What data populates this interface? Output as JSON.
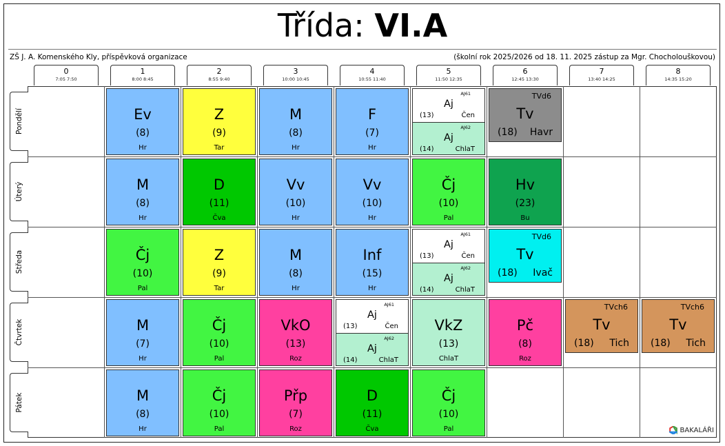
{
  "header": {
    "title_prefix": "Třída:",
    "title_class": "VI.A",
    "school": "ZŠ J. A. Komenského Kly, příspěvková organizace",
    "info": "(školní rok 2025/2026 od 18. 11. 2025 zástup za Mgr. Chocholouškovou)"
  },
  "periods": [
    {
      "num": "0",
      "time": "7:05  7:50"
    },
    {
      "num": "1",
      "time": "8:00  8:45"
    },
    {
      "num": "2",
      "time": "8:55  9:40"
    },
    {
      "num": "3",
      "time": "10:00 10:45"
    },
    {
      "num": "4",
      "time": "10:55 11:40"
    },
    {
      "num": "5",
      "time": "11:50 12:35"
    },
    {
      "num": "6",
      "time": "12:45 13:30"
    },
    {
      "num": "7",
      "time": "13:40 14:25"
    },
    {
      "num": "8",
      "time": "14:35 15:20"
    }
  ],
  "days": [
    {
      "name": "Pondělí",
      "lessons": [
        {
          "p": 1,
          "subject": "Ev",
          "room": "(8)",
          "teacher": "Hr",
          "color": "#80bfff"
        },
        {
          "p": 2,
          "subject": "Z",
          "room": "(9)",
          "teacher": "Tar",
          "color": "#ffff3d"
        },
        {
          "p": 3,
          "subject": "M",
          "room": "(8)",
          "teacher": "Hr",
          "color": "#80bfff"
        },
        {
          "p": 4,
          "subject": "F",
          "room": "(7)",
          "teacher": "Hr",
          "color": "#80bfff"
        }
      ],
      "split": [
        {
          "p": 5,
          "halves": [
            {
              "group": "AJ61",
              "subject": "Aj",
              "room": "(13)",
              "teacher": "Čen",
              "color": "#ffffff"
            },
            {
              "group": "AJ62",
              "subject": "Aj",
              "room": "(14)",
              "teacher": "ChlaT",
              "color": "#b3f0d0"
            }
          ]
        }
      ],
      "short": [
        {
          "p": 6,
          "group": "TVd6",
          "subject": "Tv",
          "room": "(18)",
          "teacher": "Havr",
          "color": "#8c8c8c"
        }
      ]
    },
    {
      "name": "Úterý",
      "lessons": [
        {
          "p": 1,
          "subject": "M",
          "room": "(8)",
          "teacher": "Hr",
          "color": "#80bfff"
        },
        {
          "p": 2,
          "subject": "D",
          "room": "(11)",
          "teacher": "Čva",
          "color": "#00c800"
        },
        {
          "p": 3,
          "subject": "Vv",
          "room": "(10)",
          "teacher": "Hr",
          "color": "#80bfff"
        },
        {
          "p": 4,
          "subject": "Vv",
          "room": "(10)",
          "teacher": "Hr",
          "color": "#80bfff"
        },
        {
          "p": 5,
          "subject": "Čj",
          "room": "(10)",
          "teacher": "Pal",
          "color": "#42f542"
        },
        {
          "p": 6,
          "subject": "Hv",
          "room": "(23)",
          "teacher": "Bu",
          "color": "#0fa34f"
        }
      ],
      "split": [],
      "short": []
    },
    {
      "name": "Středa",
      "lessons": [
        {
          "p": 1,
          "subject": "Čj",
          "room": "(10)",
          "teacher": "Pal",
          "color": "#42f542"
        },
        {
          "p": 2,
          "subject": "Z",
          "room": "(9)",
          "teacher": "Tar",
          "color": "#ffff3d"
        },
        {
          "p": 3,
          "subject": "M",
          "room": "(8)",
          "teacher": "Hr",
          "color": "#80bfff"
        },
        {
          "p": 4,
          "subject": "Inf",
          "room": "(15)",
          "teacher": "Hr",
          "color": "#80bfff"
        }
      ],
      "split": [
        {
          "p": 5,
          "halves": [
            {
              "group": "AJ61",
              "subject": "Aj",
              "room": "(13)",
              "teacher": "Čen",
              "color": "#ffffff"
            },
            {
              "group": "AJ62",
              "subject": "Aj",
              "room": "(14)",
              "teacher": "ChlaT",
              "color": "#b3f0d0"
            }
          ]
        }
      ],
      "short": [
        {
          "p": 6,
          "group": "TVd6",
          "subject": "Tv",
          "room": "(18)",
          "teacher": "Ivač",
          "color": "#00f0f0"
        }
      ]
    },
    {
      "name": "Čtvrtek",
      "lessons": [
        {
          "p": 1,
          "subject": "M",
          "room": "(7)",
          "teacher": "Hr",
          "color": "#80bfff"
        },
        {
          "p": 2,
          "subject": "Čj",
          "room": "(10)",
          "teacher": "Pal",
          "color": "#42f542"
        },
        {
          "p": 3,
          "subject": "VkO",
          "room": "(13)",
          "teacher": "Roz",
          "color": "#ff40a0"
        },
        {
          "p": 5,
          "subject": "VkZ",
          "room": "(13)",
          "teacher": "ChlaT",
          "color": "#b3f0d0"
        },
        {
          "p": 6,
          "subject": "Pč",
          "room": "(8)",
          "teacher": "Roz",
          "color": "#ff40a0"
        }
      ],
      "split": [
        {
          "p": 4,
          "halves": [
            {
              "group": "AJ61",
              "subject": "Aj",
              "room": "(13)",
              "teacher": "Čen",
              "color": "#ffffff"
            },
            {
              "group": "AJ62",
              "subject": "Aj",
              "room": "(14)",
              "teacher": "ChlaT",
              "color": "#b3f0d0"
            }
          ]
        }
      ],
      "short": [
        {
          "p": 7,
          "group": "TVch6",
          "subject": "Tv",
          "room": "(18)",
          "teacher": "Tich",
          "color": "#d4955c"
        },
        {
          "p": 8,
          "group": "TVch6",
          "subject": "Tv",
          "room": "(18)",
          "teacher": "Tich",
          "color": "#d4955c"
        }
      ]
    },
    {
      "name": "Pátek",
      "lessons": [
        {
          "p": 1,
          "subject": "M",
          "room": "(8)",
          "teacher": "Hr",
          "color": "#80bfff"
        },
        {
          "p": 2,
          "subject": "Čj",
          "room": "(10)",
          "teacher": "Pal",
          "color": "#42f542"
        },
        {
          "p": 3,
          "subject": "Přp",
          "room": "(7)",
          "teacher": "Roz",
          "color": "#ff40a0"
        },
        {
          "p": 4,
          "subject": "D",
          "room": "(11)",
          "teacher": "Čva",
          "color": "#00c800"
        },
        {
          "p": 5,
          "subject": "Čj",
          "room": "(10)",
          "teacher": "Pal",
          "color": "#42f542"
        }
      ],
      "split": [],
      "short": []
    }
  ],
  "logo": {
    "text": "BAKALÁŘI",
    "icon": "bakalari-logo-icon"
  }
}
